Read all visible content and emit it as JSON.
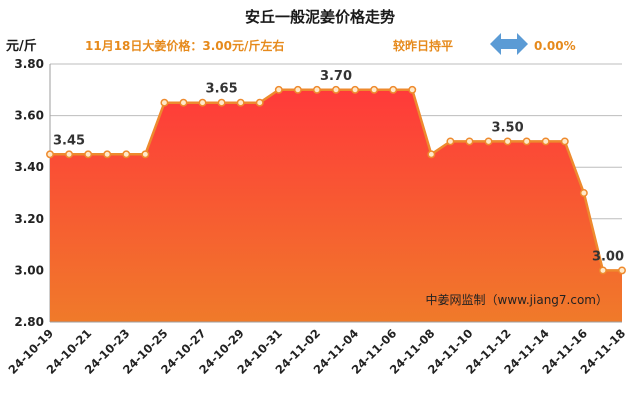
{
  "header": {
    "title": "安丘一般泥姜价格走势",
    "unit": "元/斤",
    "today_price": "11月18日大姜价格：3.00元/斤左右",
    "compare_label": "较昨日持平",
    "compare_value": "0.00%",
    "source": "中姜网监制（www.jiang7.com）"
  },
  "colors": {
    "line": "#ee8a2e",
    "point_fill": "#ffe9c9",
    "area_top": "#ff3a3a",
    "area_bottom": "#f07a2a",
    "sub_text": "#e68a1c",
    "arrow": "#5b9bd5",
    "grid": "#bdbdbd"
  },
  "chart_data": {
    "type": "area",
    "title": "安丘一般泥姜价格走势",
    "ylabel": "元/斤",
    "ylim": [
      2.8,
      3.8
    ],
    "yticks": [
      "2.80",
      "3.00",
      "3.20",
      "3.40",
      "3.60",
      "3.80"
    ],
    "grid": "horizontal",
    "x_tick_labels": [
      "24-10-19",
      "24-10-21",
      "24-10-23",
      "24-10-25",
      "24-10-27",
      "24-10-29",
      "24-10-31",
      "24-11-02",
      "24-11-04",
      "24-11-06",
      "24-11-08",
      "24-11-10",
      "24-11-12",
      "24-11-14",
      "24-11-16",
      "24-11-18"
    ],
    "x": [
      "24-10-19",
      "24-10-20",
      "24-10-21",
      "24-10-22",
      "24-10-23",
      "24-10-24",
      "24-10-25",
      "24-10-26",
      "24-10-27",
      "24-10-28",
      "24-10-29",
      "24-10-30",
      "24-10-31",
      "24-11-01",
      "24-11-02",
      "24-11-03",
      "24-11-04",
      "24-11-05",
      "24-11-06",
      "24-11-07",
      "24-11-08",
      "24-11-09",
      "24-11-10",
      "24-11-11",
      "24-11-12",
      "24-11-13",
      "24-11-14",
      "24-11-15",
      "24-11-16",
      "24-11-17",
      "24-11-18"
    ],
    "values": [
      3.45,
      3.45,
      3.45,
      3.45,
      3.45,
      3.45,
      3.65,
      3.65,
      3.65,
      3.65,
      3.65,
      3.65,
      3.7,
      3.7,
      3.7,
      3.7,
      3.7,
      3.7,
      3.7,
      3.7,
      3.45,
      3.5,
      3.5,
      3.5,
      3.5,
      3.5,
      3.5,
      3.5,
      3.3,
      3.0,
      3.0
    ],
    "annotations": [
      {
        "index": 1,
        "text": "3.45"
      },
      {
        "index": 9,
        "text": "3.65"
      },
      {
        "index": 15,
        "text": "3.70"
      },
      {
        "index": 24,
        "text": "3.50"
      },
      {
        "index": 30,
        "text": "3.00"
      }
    ]
  }
}
